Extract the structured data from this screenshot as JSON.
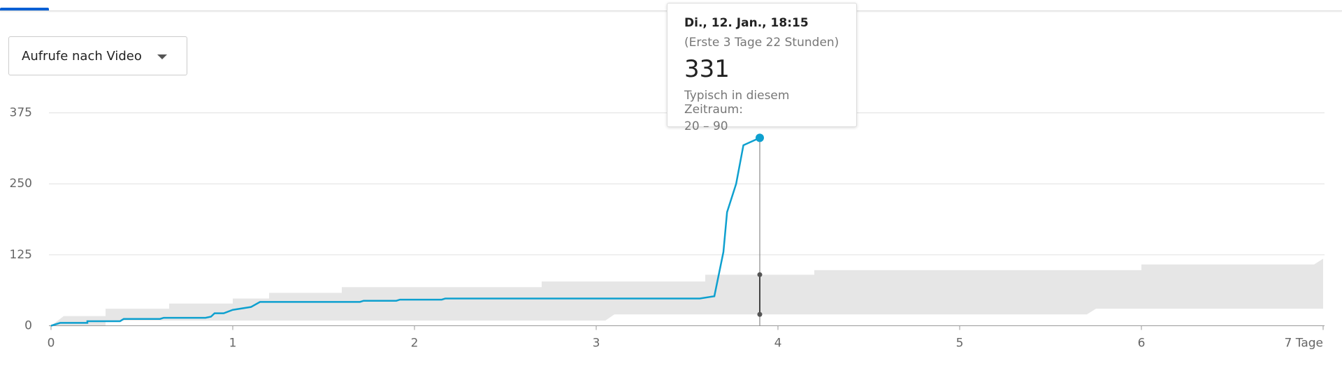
{
  "dropdown": {
    "label": "Aufrufe nach Video"
  },
  "tooltip": {
    "date": "Di., 12. Jan., 18:15",
    "elapsed": "(Erste 3 Tage 22 Stunden)",
    "typical_label": "Typisch in diesem Zeitraum:",
    "typical_range": "20 – 90"
  },
  "chart_data": {
    "type": "line",
    "x": [
      0,
      0.05,
      0.2,
      0.2,
      0.38,
      0.4,
      0.6,
      0.62,
      0.85,
      0.88,
      0.9,
      0.95,
      1.0,
      1.1,
      1.15,
      1.7,
      1.72,
      1.9,
      1.92,
      2.15,
      2.17,
      3.57,
      3.65,
      3.7,
      3.72,
      3.77,
      3.81,
      3.9
    ],
    "series": [
      {
        "color": "#0ea0cf",
        "values": [
          0,
          5,
          5,
          8,
          8,
          12,
          12,
          14,
          14,
          16,
          22,
          22,
          28,
          33,
          42,
          42,
          44,
          44,
          46,
          46,
          48,
          48,
          52,
          130,
          200,
          250,
          318,
          331
        ]
      }
    ],
    "band": {
      "color": "#e6e6e6",
      "x": [
        0,
        0.07,
        0.3,
        0.3,
        0.65,
        0.65,
        1.0,
        1.0,
        1.2,
        1.2,
        1.6,
        1.6,
        2.7,
        2.7,
        3.05,
        3.1,
        3.6,
        3.6,
        4.2,
        4.2,
        5.7,
        5.75,
        6.0,
        6.0,
        6.95,
        7.0
      ],
      "high": [
        0,
        17,
        17,
        30,
        30,
        39,
        39,
        48,
        48,
        58,
        58,
        68,
        68,
        78,
        78,
        78,
        78,
        90,
        90,
        98,
        98,
        98,
        98,
        108,
        108,
        118
      ],
      "low": [
        0,
        0,
        0,
        9,
        9,
        9,
        9,
        9,
        9,
        9,
        9,
        9,
        9,
        9,
        9,
        20,
        20,
        20,
        20,
        20,
        20,
        30,
        30,
        30,
        30,
        30
      ]
    },
    "xlim": [
      0,
      7
    ],
    "xticks": [
      0,
      1,
      2,
      3,
      4,
      5,
      6,
      {
        "value": 7,
        "label": "7 Tage"
      }
    ],
    "ylim": [
      0,
      375
    ],
    "yticks": [
      0,
      125,
      250,
      375
    ],
    "grid": true
  }
}
